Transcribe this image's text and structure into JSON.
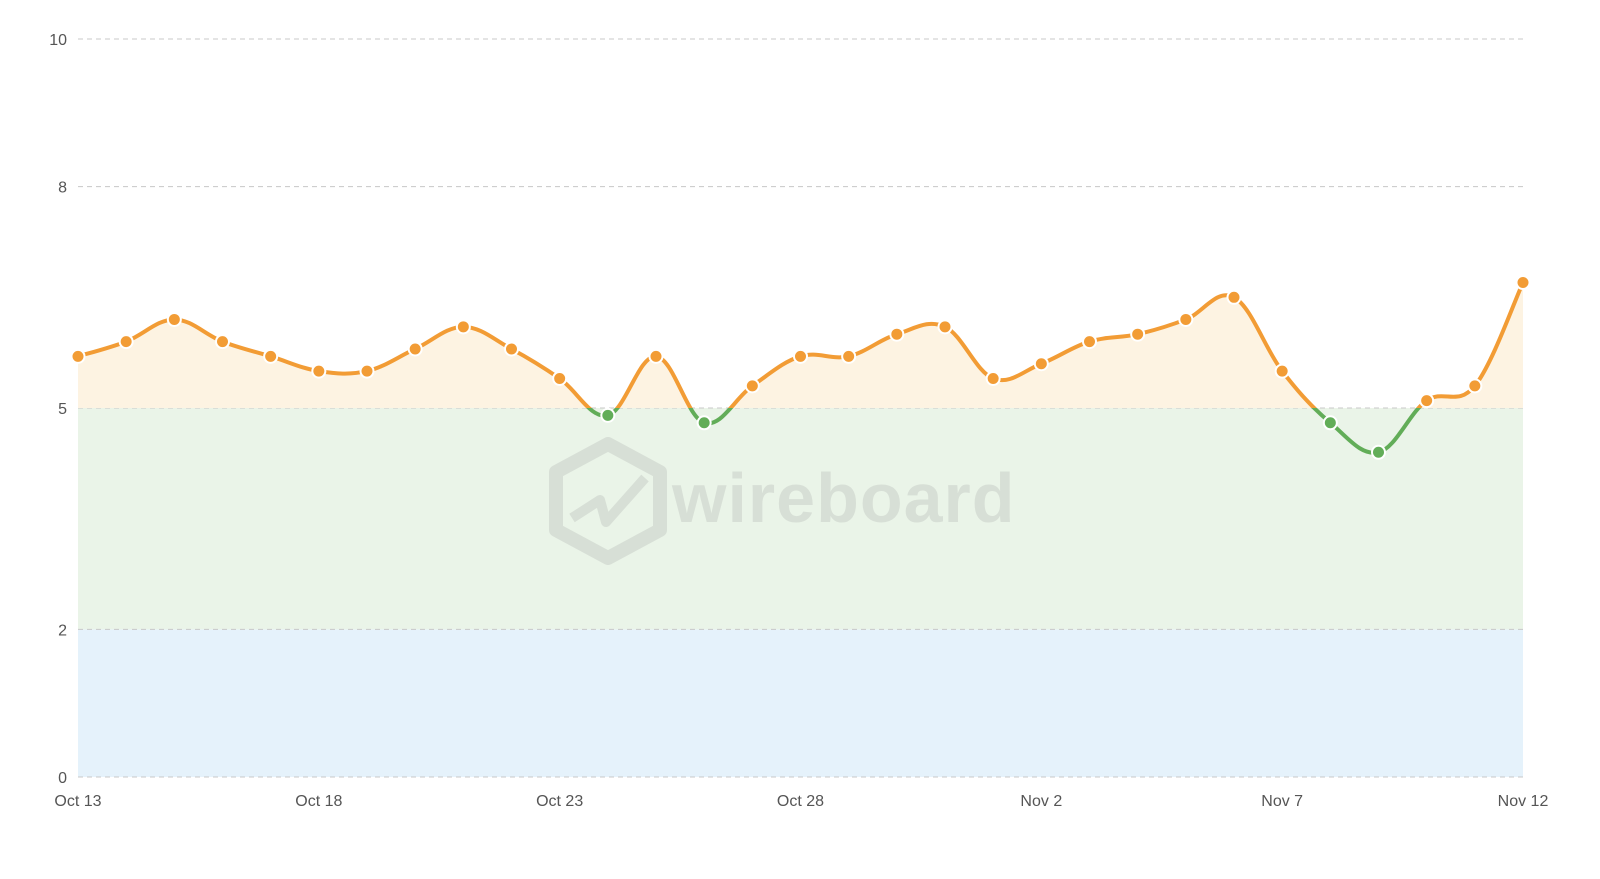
{
  "watermark": {
    "text": "wireboard",
    "icon": "wireboard-hexagon-logo-icon"
  },
  "chart_data": {
    "type": "line",
    "title": "",
    "xlabel": "",
    "ylabel": "",
    "ylim": [
      0,
      10
    ],
    "yticks": [
      0,
      2,
      5,
      8,
      10
    ],
    "grid": "horizontal-dashed",
    "xtick_labels": [
      "Oct 13",
      "Oct 18",
      "Oct 23",
      "Oct 28",
      "Nov 2",
      "Nov 7",
      "Nov 12"
    ],
    "x": [
      "Oct 13",
      "Oct 14",
      "Oct 15",
      "Oct 16",
      "Oct 17",
      "Oct 18",
      "Oct 19",
      "Oct 20",
      "Oct 21",
      "Oct 22",
      "Oct 23",
      "Oct 24",
      "Oct 25",
      "Oct 26",
      "Oct 27",
      "Oct 28",
      "Oct 29",
      "Oct 30",
      "Oct 31",
      "Nov 1",
      "Nov 2",
      "Nov 3",
      "Nov 4",
      "Nov 5",
      "Nov 6",
      "Nov 7",
      "Nov 8",
      "Nov 9",
      "Nov 10",
      "Nov 11",
      "Nov 12"
    ],
    "series": [
      {
        "values": [
          5.7,
          5.9,
          6.2,
          5.9,
          5.7,
          5.5,
          5.5,
          5.8,
          6.1,
          5.8,
          5.4,
          4.9,
          5.7,
          4.8,
          5.3,
          5.7,
          5.7,
          6.0,
          6.1,
          5.4,
          5.6,
          5.9,
          6.0,
          6.2,
          6.5,
          5.5,
          4.8,
          4.4,
          5.1,
          5.3,
          6.7
        ]
      }
    ],
    "threshold": 5,
    "bands": [
      {
        "from": 0,
        "to": 2,
        "color": "#e5f2fb"
      },
      {
        "from": 2,
        "to": 5,
        "color": "#eaf4e8"
      }
    ],
    "colors": {
      "above": "#f29c35",
      "below": "#62ad58",
      "above_fill": "#fdf3e2"
    }
  }
}
